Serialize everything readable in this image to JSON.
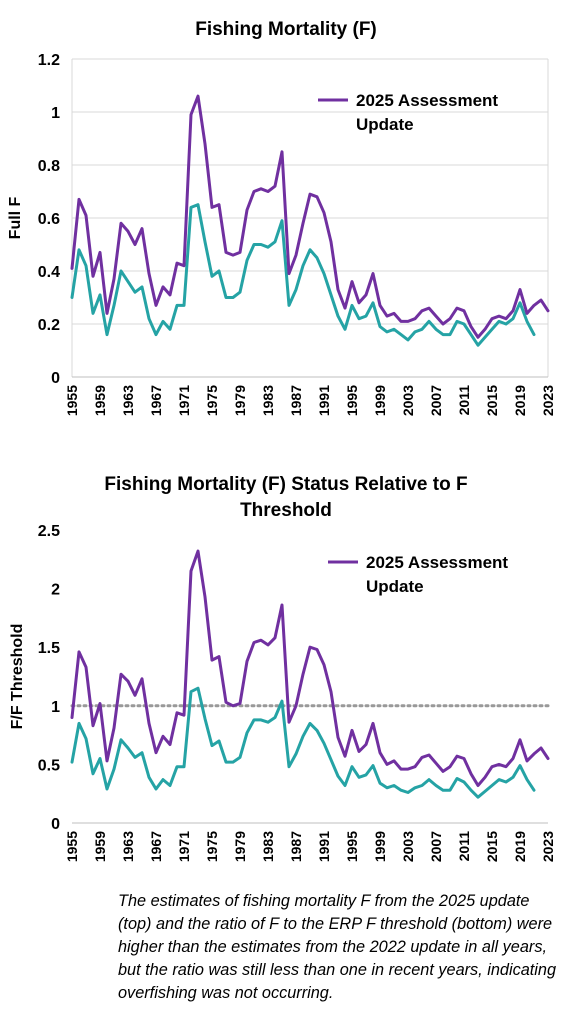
{
  "colors": {
    "series_2025": "#7030A0",
    "series_2022": "#25A3A5",
    "threshold": "#999999",
    "grid": "#d9d9d9"
  },
  "caption": "The estimates of fishing mortality F from the 2025 update (top) and the ratio of F to the ERP F threshold (bottom) were higher than the estimates from the 2022 update in all years, but the ratio was still less than one in recent years, indicating overfishing was not occurring.",
  "chart_data": [
    {
      "type": "line",
      "title": "Fishing Mortality (F)",
      "xlabel": "",
      "ylabel": "Full F",
      "ylim": [
        0,
        1.2
      ],
      "yticks": [
        "0",
        "0.2",
        "0.4",
        "0.6",
        "0.8",
        "1",
        "1.2"
      ],
      "xlim": [
        1955,
        2023
      ],
      "xticks": [
        1955,
        1959,
        1963,
        1967,
        1971,
        1975,
        1979,
        1983,
        1987,
        1991,
        1995,
        1999,
        2003,
        2007,
        2011,
        2015,
        2019,
        2023
      ],
      "grid": true,
      "legend": {
        "placement": "top-right",
        "entries": [
          "2025 Assessment Update"
        ]
      },
      "series": [
        {
          "name": "2025 Assessment Update",
          "color": "#7030A0",
          "x": [
            1955,
            1956,
            1957,
            1958,
            1959,
            1960,
            1961,
            1962,
            1963,
            1964,
            1965,
            1966,
            1967,
            1968,
            1969,
            1970,
            1971,
            1972,
            1973,
            1974,
            1975,
            1976,
            1977,
            1978,
            1979,
            1980,
            1981,
            1982,
            1983,
            1984,
            1985,
            1986,
            1987,
            1988,
            1989,
            1990,
            1991,
            1992,
            1993,
            1994,
            1995,
            1996,
            1997,
            1998,
            1999,
            2000,
            2001,
            2002,
            2003,
            2004,
            2005,
            2006,
            2007,
            2008,
            2009,
            2010,
            2011,
            2012,
            2013,
            2014,
            2015,
            2016,
            2017,
            2018,
            2019,
            2020,
            2021,
            2022,
            2023
          ],
          "values": [
            0.41,
            0.67,
            0.61,
            0.38,
            0.47,
            0.24,
            0.37,
            0.58,
            0.55,
            0.5,
            0.56,
            0.39,
            0.27,
            0.34,
            0.31,
            0.43,
            0.42,
            0.99,
            1.06,
            0.88,
            0.64,
            0.65,
            0.47,
            0.46,
            0.47,
            0.63,
            0.7,
            0.71,
            0.7,
            0.72,
            0.85,
            0.39,
            0.46,
            0.58,
            0.69,
            0.68,
            0.62,
            0.51,
            0.33,
            0.26,
            0.36,
            0.28,
            0.31,
            0.39,
            0.27,
            0.23,
            0.24,
            0.21,
            0.21,
            0.22,
            0.25,
            0.26,
            0.23,
            0.2,
            0.22,
            0.26,
            0.25,
            0.19,
            0.15,
            0.18,
            0.22,
            0.23,
            0.22,
            0.25,
            0.33,
            0.24,
            0.27,
            0.29,
            0.25
          ]
        },
        {
          "name": "",
          "color": "#25A3A5",
          "x": [
            1955,
            1956,
            1957,
            1958,
            1959,
            1960,
            1961,
            1962,
            1963,
            1964,
            1965,
            1966,
            1967,
            1968,
            1969,
            1970,
            1971,
            1972,
            1973,
            1974,
            1975,
            1976,
            1977,
            1978,
            1979,
            1980,
            1981,
            1982,
            1983,
            1984,
            1985,
            1986,
            1987,
            1988,
            1989,
            1990,
            1991,
            1992,
            1993,
            1994,
            1995,
            1996,
            1997,
            1998,
            1999,
            2000,
            2001,
            2002,
            2003,
            2004,
            2005,
            2006,
            2007,
            2008,
            2009,
            2010,
            2011,
            2012,
            2013,
            2014,
            2015,
            2016,
            2017,
            2018,
            2019,
            2020,
            2021
          ],
          "values": [
            0.3,
            0.48,
            0.42,
            0.24,
            0.31,
            0.16,
            0.27,
            0.4,
            0.36,
            0.32,
            0.34,
            0.22,
            0.16,
            0.21,
            0.18,
            0.27,
            0.27,
            0.64,
            0.65,
            0.51,
            0.38,
            0.4,
            0.3,
            0.3,
            0.32,
            0.44,
            0.5,
            0.5,
            0.49,
            0.51,
            0.59,
            0.27,
            0.33,
            0.42,
            0.48,
            0.45,
            0.39,
            0.31,
            0.23,
            0.18,
            0.27,
            0.22,
            0.23,
            0.28,
            0.19,
            0.17,
            0.18,
            0.16,
            0.14,
            0.17,
            0.18,
            0.21,
            0.18,
            0.16,
            0.16,
            0.21,
            0.2,
            0.16,
            0.12,
            0.15,
            0.18,
            0.21,
            0.2,
            0.22,
            0.28,
            0.21,
            0.16
          ]
        }
      ]
    },
    {
      "type": "line",
      "title": "Fishing Mortality (F) Status Relative to F Threshold",
      "xlabel": "",
      "ylabel": "F/F Threshold",
      "ylim": [
        0,
        2.5
      ],
      "yticks": [
        "0",
        "0.5",
        "1",
        "1.5",
        "2",
        "2.5"
      ],
      "xlim": [
        1955,
        2023
      ],
      "xticks": [
        1955,
        1959,
        1963,
        1967,
        1971,
        1975,
        1979,
        1983,
        1987,
        1991,
        1995,
        1999,
        2003,
        2007,
        2011,
        2015,
        2019,
        2023
      ],
      "grid": false,
      "reference_line": {
        "value": 1,
        "style": "dotted",
        "color": "#999999"
      },
      "legend": {
        "placement": "top-right",
        "entries": [
          "2025 Assessment Update"
        ]
      },
      "series": [
        {
          "name": "2025 Assessment Update",
          "color": "#7030A0",
          "x": [
            1955,
            1956,
            1957,
            1958,
            1959,
            1960,
            1961,
            1962,
            1963,
            1964,
            1965,
            1966,
            1967,
            1968,
            1969,
            1970,
            1971,
            1972,
            1973,
            1974,
            1975,
            1976,
            1977,
            1978,
            1979,
            1980,
            1981,
            1982,
            1983,
            1984,
            1985,
            1986,
            1987,
            1988,
            1989,
            1990,
            1991,
            1992,
            1993,
            1994,
            1995,
            1996,
            1997,
            1998,
            1999,
            2000,
            2001,
            2002,
            2003,
            2004,
            2005,
            2006,
            2007,
            2008,
            2009,
            2010,
            2011,
            2012,
            2013,
            2014,
            2015,
            2016,
            2017,
            2018,
            2019,
            2020,
            2021,
            2022,
            2023
          ],
          "values": [
            0.9,
            1.46,
            1.33,
            0.83,
            1.02,
            0.53,
            0.81,
            1.27,
            1.21,
            1.09,
            1.23,
            0.85,
            0.6,
            0.74,
            0.67,
            0.94,
            0.92,
            2.15,
            2.32,
            1.93,
            1.39,
            1.42,
            1.03,
            1.0,
            1.02,
            1.38,
            1.54,
            1.56,
            1.52,
            1.58,
            1.86,
            0.86,
            1.0,
            1.27,
            1.5,
            1.48,
            1.35,
            1.12,
            0.73,
            0.57,
            0.79,
            0.61,
            0.67,
            0.85,
            0.6,
            0.5,
            0.53,
            0.46,
            0.46,
            0.48,
            0.56,
            0.58,
            0.51,
            0.44,
            0.48,
            0.57,
            0.55,
            0.42,
            0.32,
            0.39,
            0.48,
            0.5,
            0.48,
            0.55,
            0.71,
            0.53,
            0.59,
            0.64,
            0.55
          ]
        },
        {
          "name": "",
          "color": "#25A3A5",
          "x": [
            1955,
            1956,
            1957,
            1958,
            1959,
            1960,
            1961,
            1962,
            1963,
            1964,
            1965,
            1966,
            1967,
            1968,
            1969,
            1970,
            1971,
            1972,
            1973,
            1974,
            1975,
            1976,
            1977,
            1978,
            1979,
            1980,
            1981,
            1982,
            1983,
            1984,
            1985,
            1986,
            1987,
            1988,
            1989,
            1990,
            1991,
            1992,
            1993,
            1994,
            1995,
            1996,
            1997,
            1998,
            1999,
            2000,
            2001,
            2002,
            2003,
            2004,
            2005,
            2006,
            2007,
            2008,
            2009,
            2010,
            2011,
            2012,
            2013,
            2014,
            2015,
            2016,
            2017,
            2018,
            2019,
            2020,
            2021
          ],
          "values": [
            0.52,
            0.85,
            0.72,
            0.42,
            0.55,
            0.29,
            0.46,
            0.71,
            0.64,
            0.56,
            0.6,
            0.39,
            0.29,
            0.37,
            0.32,
            0.48,
            0.48,
            1.12,
            1.15,
            0.89,
            0.66,
            0.7,
            0.52,
            0.52,
            0.56,
            0.77,
            0.88,
            0.88,
            0.86,
            0.9,
            1.04,
            0.48,
            0.59,
            0.74,
            0.85,
            0.79,
            0.68,
            0.54,
            0.4,
            0.32,
            0.48,
            0.39,
            0.41,
            0.49,
            0.34,
            0.3,
            0.32,
            0.28,
            0.26,
            0.3,
            0.32,
            0.37,
            0.32,
            0.28,
            0.28,
            0.38,
            0.35,
            0.28,
            0.22,
            0.27,
            0.32,
            0.37,
            0.35,
            0.39,
            0.49,
            0.37,
            0.28
          ]
        }
      ]
    }
  ]
}
